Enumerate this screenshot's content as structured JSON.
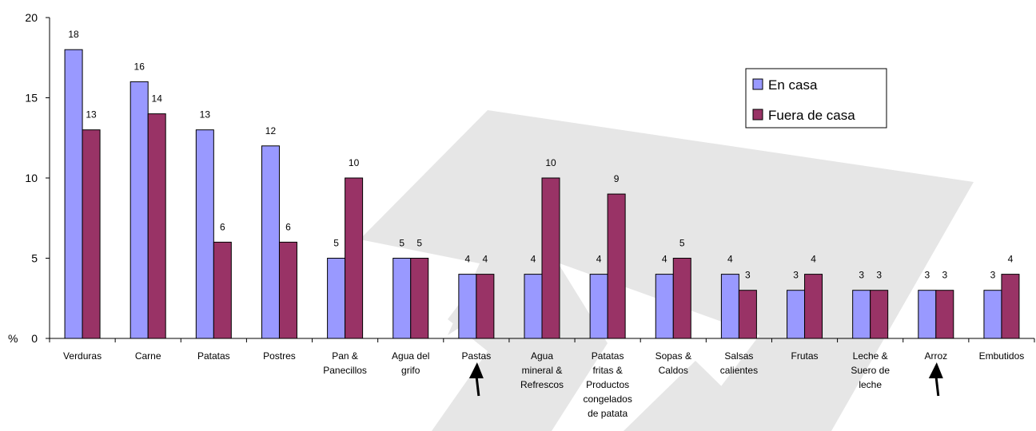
{
  "chart_data": {
    "type": "bar",
    "yaxis_prefix": "%",
    "ylim": [
      0,
      20
    ],
    "yticks": [
      "0",
      "5",
      "10",
      "15",
      "20"
    ],
    "grid": false,
    "legend_position": "top-right",
    "categories": [
      [
        "Verduras"
      ],
      [
        "Carne"
      ],
      [
        "Patatas"
      ],
      [
        "Postres"
      ],
      [
        "Pan &",
        "Panecillos"
      ],
      [
        "Agua del",
        "grifo"
      ],
      [
        "Pastas"
      ],
      [
        "Agua",
        "mineral &",
        "Refrescos"
      ],
      [
        "Patatas",
        "fritas &",
        "Productos",
        "congelados",
        "de patata"
      ],
      [
        "Sopas &",
        "Caldos"
      ],
      [
        "Salsas",
        "calientes"
      ],
      [
        "Frutas"
      ],
      [
        "Leche &",
        "Suero de",
        "leche"
      ],
      [
        "Arroz"
      ],
      [
        "Embutidos"
      ]
    ],
    "series": [
      {
        "name": "En casa",
        "color": "#9999ff",
        "values": [
          18,
          16,
          13,
          12,
          5,
          5,
          4,
          4,
          4,
          4,
          4,
          3,
          3,
          3,
          3
        ]
      },
      {
        "name": "Fuera de casa",
        "color": "#993366",
        "values": [
          13,
          14,
          6,
          6,
          10,
          5,
          4,
          10,
          9,
          5,
          3,
          4,
          3,
          3,
          4
        ]
      }
    ],
    "arrows_under": [
      "Pastas",
      "Arroz"
    ],
    "watermark_color": "#e0e0e0"
  }
}
